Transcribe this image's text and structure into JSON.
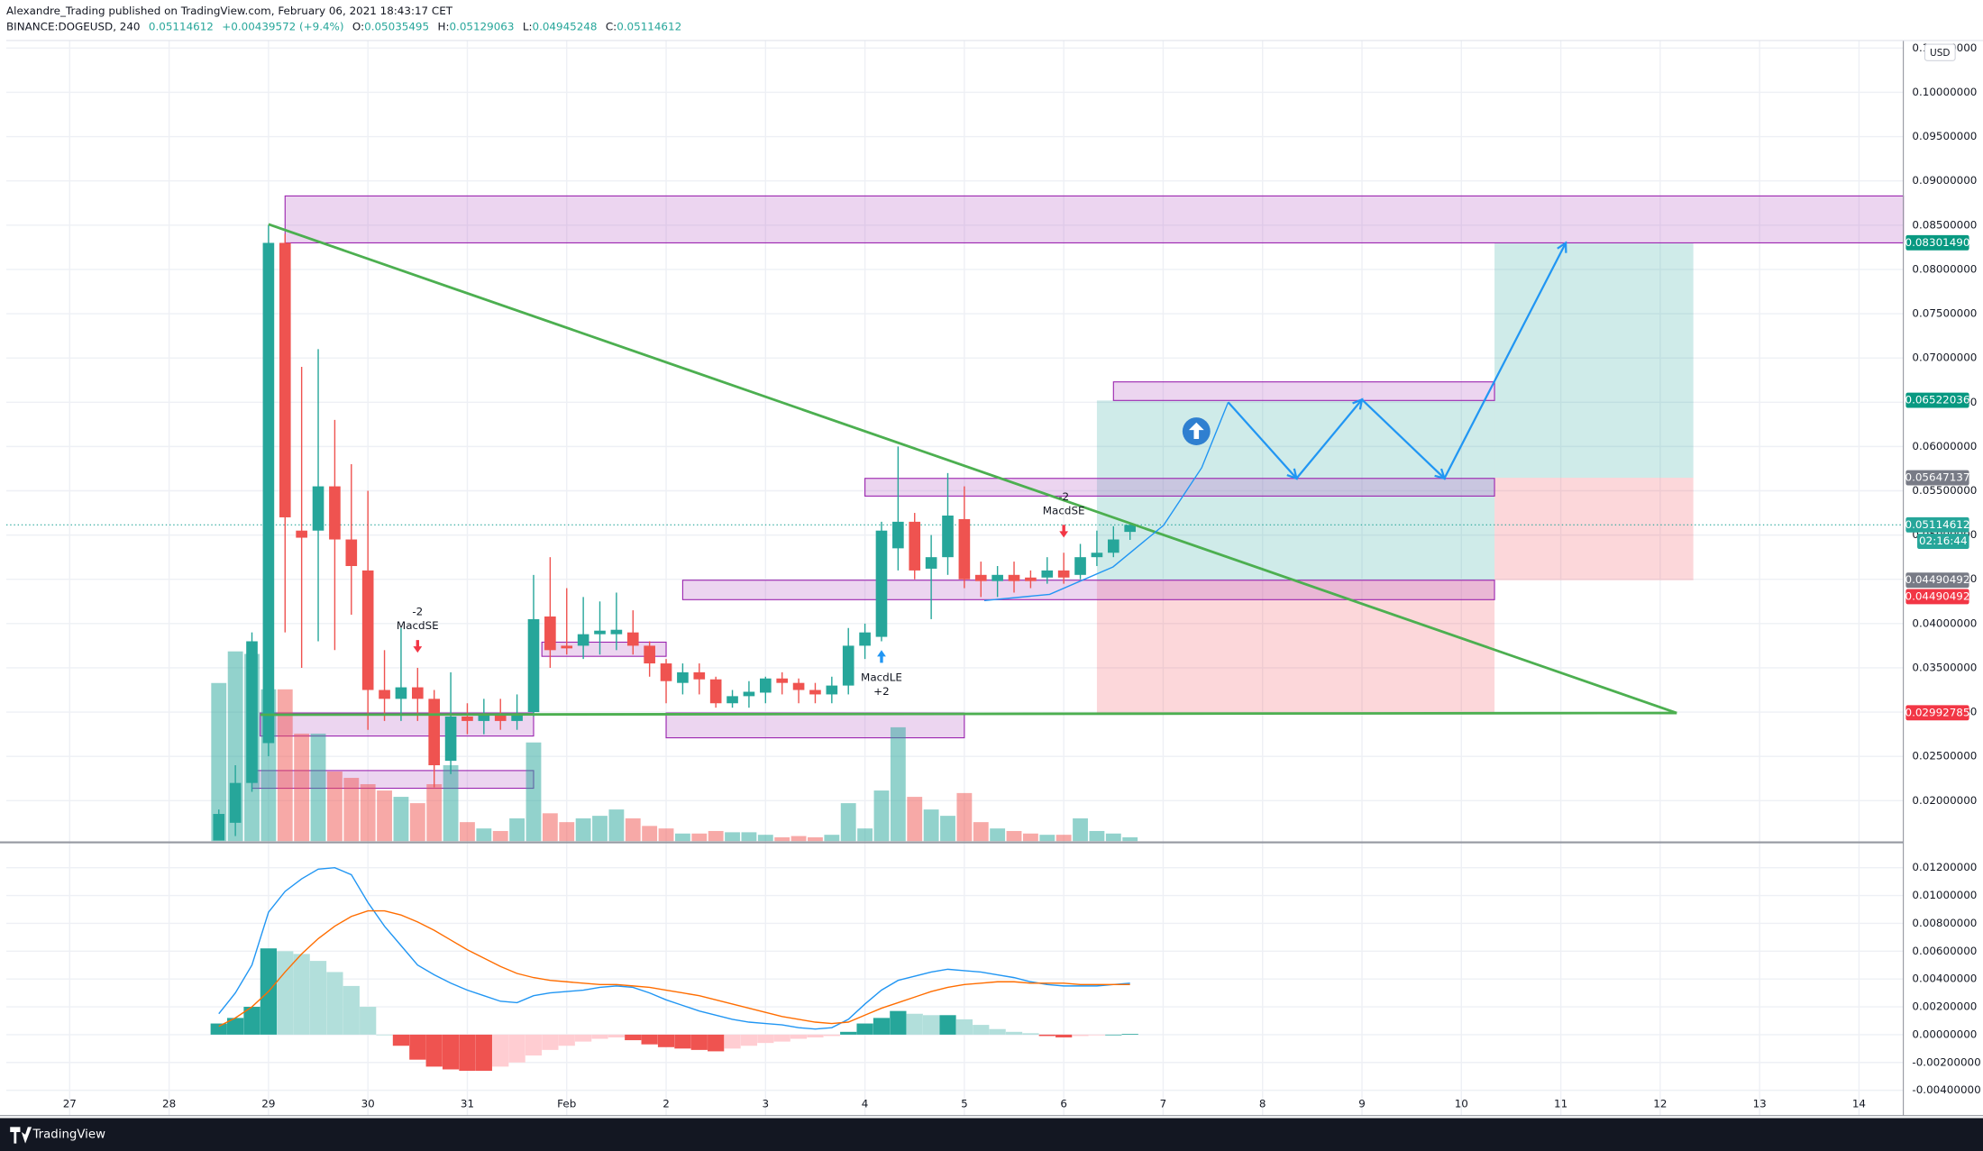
{
  "header": {
    "published": "Alexandre_Trading published on TradingView.com, February 06, 2021 18:43:17 CET",
    "symbol": "BINANCE:DOGEUSD, 240",
    "last": "0.05114612",
    "change": "+0.00439572 (+9.4%)",
    "ohlc": [
      {
        "key": "O:",
        "value": "0.05035495"
      },
      {
        "key": "H:",
        "value": "0.05129063"
      },
      {
        "key": "L:",
        "value": "0.04945248"
      },
      {
        "key": "C:",
        "value": "0.05114612"
      }
    ]
  },
  "footer": {
    "brand": "TradingView"
  },
  "chart_data": {
    "type": "candlestick",
    "currency": "USD",
    "countdown": "02:16:44",
    "up_color": "#26a69a",
    "down_color": "#ef5350",
    "grid": true,
    "x": [
      36,
      40,
      44,
      48,
      52,
      56,
      60,
      64,
      68,
      72,
      76,
      80,
      84,
      88,
      92,
      96,
      100,
      104,
      108,
      112,
      116,
      120,
      124,
      128,
      132,
      136,
      140,
      144,
      148,
      152,
      156,
      160,
      164,
      168,
      172,
      176,
      180,
      184,
      188,
      192,
      196,
      200,
      204,
      208,
      212,
      216,
      220,
      224,
      228,
      232,
      236,
      240,
      244,
      248,
      252,
      256
    ],
    "open": [
      0.0155,
      0.0175,
      0.022,
      0.0265,
      0.083,
      0.0505,
      0.0505,
      0.0555,
      0.0495,
      0.046,
      0.0325,
      0.0315,
      0.0328,
      0.0315,
      0.0245,
      0.0295,
      0.029,
      0.0297,
      0.029,
      0.03,
      0.0408,
      0.0375,
      0.0375,
      0.0388,
      0.0388,
      0.039,
      0.0375,
      0.0355,
      0.0333,
      0.0345,
      0.0337,
      0.031,
      0.0318,
      0.0322,
      0.0338,
      0.0333,
      0.0325,
      0.032,
      0.033,
      0.0375,
      0.0385,
      0.0485,
      0.0515,
      0.0462,
      0.0475,
      0.0518,
      0.0455,
      0.0448,
      0.0455,
      0.0452,
      0.0452,
      0.046,
      0.0455,
      0.0475,
      0.048,
      0.05035495
    ],
    "high": [
      0.019,
      0.024,
      0.039,
      0.085,
      0.084,
      0.069,
      0.071,
      0.063,
      0.058,
      0.055,
      0.037,
      0.0395,
      0.035,
      0.0325,
      0.0345,
      0.031,
      0.0315,
      0.0315,
      0.032,
      0.0455,
      0.0475,
      0.044,
      0.043,
      0.0425,
      0.0435,
      0.0415,
      0.038,
      0.036,
      0.0355,
      0.0355,
      0.034,
      0.0325,
      0.0335,
      0.034,
      0.0345,
      0.0338,
      0.0333,
      0.034,
      0.0395,
      0.04,
      0.0515,
      0.06,
      0.0525,
      0.05,
      0.057,
      0.0555,
      0.047,
      0.0465,
      0.047,
      0.046,
      0.0475,
      0.048,
      0.049,
      0.0505,
      0.051,
      0.05129063
    ],
    "low": [
      0.0155,
      0.016,
      0.021,
      0.025,
      0.039,
      0.035,
      0.038,
      0.037,
      0.041,
      0.028,
      0.029,
      0.029,
      0.029,
      0.0215,
      0.023,
      0.0275,
      0.0275,
      0.028,
      0.028,
      0.0295,
      0.035,
      0.0365,
      0.036,
      0.0365,
      0.037,
      0.0365,
      0.034,
      0.031,
      0.032,
      0.032,
      0.0305,
      0.0305,
      0.0305,
      0.031,
      0.032,
      0.031,
      0.031,
      0.031,
      0.032,
      0.036,
      0.038,
      0.046,
      0.045,
      0.0405,
      0.0455,
      0.044,
      0.043,
      0.043,
      0.0435,
      0.044,
      0.0445,
      0.0445,
      0.045,
      0.0465,
      0.0475,
      0.04945248
    ],
    "close": [
      0.0185,
      0.022,
      0.038,
      0.083,
      0.052,
      0.0497,
      0.0555,
      0.0495,
      0.0465,
      0.0325,
      0.0315,
      0.0328,
      0.0315,
      0.024,
      0.0295,
      0.029,
      0.0297,
      0.029,
      0.0298,
      0.0405,
      0.037,
      0.0372,
      0.0388,
      0.0392,
      0.0393,
      0.0375,
      0.0355,
      0.0335,
      0.0345,
      0.0337,
      0.031,
      0.0318,
      0.0323,
      0.0338,
      0.0333,
      0.0325,
      0.032,
      0.033,
      0.0375,
      0.039,
      0.0505,
      0.0515,
      0.046,
      0.0475,
      0.0522,
      0.045,
      0.0448,
      0.0455,
      0.0448,
      0.0448,
      0.046,
      0.0452,
      0.0475,
      0.048,
      0.0495,
      0.05114612
    ],
    "volume": [
      125,
      150,
      148,
      120,
      120,
      85,
      85,
      55,
      50,
      45,
      40,
      35,
      30,
      45,
      60,
      15,
      10,
      8,
      18,
      78,
      22,
      15,
      18,
      20,
      25,
      18,
      12,
      10,
      6,
      6,
      8,
      7,
      7,
      5,
      3,
      4,
      3,
      5,
      30,
      10,
      40,
      90,
      35,
      25,
      20,
      38,
      15,
      10,
      8,
      6,
      5,
      5,
      18,
      8,
      6,
      3
    ],
    "xlim": [
      -15.3,
      442.7
    ],
    "xticks": [
      {
        "value": 0,
        "label": "27"
      },
      {
        "value": 24,
        "label": "28"
      },
      {
        "value": 48,
        "label": "29"
      },
      {
        "value": 72,
        "label": "30"
      },
      {
        "value": 96,
        "label": "31"
      },
      {
        "value": 120,
        "label": "Feb"
      },
      {
        "value": 144,
        "label": "2"
      },
      {
        "value": 168,
        "label": "3"
      },
      {
        "value": 192,
        "label": "4"
      },
      {
        "value": 216,
        "label": "5"
      },
      {
        "value": 240,
        "label": "6"
      },
      {
        "value": 264,
        "label": "7"
      },
      {
        "value": 288,
        "label": "8"
      },
      {
        "value": 312,
        "label": "9"
      },
      {
        "value": 336,
        "label": "10"
      },
      {
        "value": 360,
        "label": "11"
      },
      {
        "value": 384,
        "label": "12"
      },
      {
        "value": 408,
        "label": "13"
      },
      {
        "value": 432,
        "label": "14"
      }
    ],
    "ylim": [
      0.01543,
      0.10586
    ],
    "yticks": [
      {
        "value": 0.02,
        "label": "0.02000000"
      },
      {
        "value": 0.025,
        "label": "0.02500000"
      },
      {
        "value": 0.03,
        "label": "0.03000000"
      },
      {
        "value": 0.035,
        "label": "0.03500000"
      },
      {
        "value": 0.04,
        "label": "0.04000000"
      },
      {
        "value": 0.045,
        "label": "0.04500000"
      },
      {
        "value": 0.05,
        "label": "0.05000000"
      },
      {
        "value": 0.055,
        "label": "0.05500000"
      },
      {
        "value": 0.06,
        "label": "0.06000000"
      },
      {
        "value": 0.065,
        "label": "0.06500000"
      },
      {
        "value": 0.07,
        "label": "0.07000000"
      },
      {
        "value": 0.075,
        "label": "0.07500000"
      },
      {
        "value": 0.08,
        "label": "0.08000000"
      },
      {
        "value": 0.085,
        "label": "0.08500000"
      },
      {
        "value": 0.09,
        "label": "0.09000000"
      },
      {
        "value": 0.095,
        "label": "0.09500000"
      },
      {
        "value": 0.1,
        "label": "0.10000000"
      },
      {
        "value": 0.105,
        "label": "0.10500000"
      }
    ],
    "price_labels": [
      {
        "value": 0.0830149,
        "label": "0.08301490",
        "color": "#089981"
      },
      {
        "value": 0.06522036,
        "label": "0.06522036",
        "color": "#089981"
      },
      {
        "value": 0.05647137,
        "label": "0.05647137",
        "color": "#787b86"
      },
      {
        "value": 0.05114612,
        "label": "0.05114612",
        "color": "#26a69a"
      },
      {
        "value": 0.04490492,
        "label": "0.04490492",
        "color": "#787b86"
      },
      {
        "value": 0.04490492,
        "label": "0.04490492",
        "color": "#f23645"
      },
      {
        "value": 0.02992785,
        "label": "0.02992785",
        "color": "#f23645"
      }
    ],
    "zones": [
      {
        "x": [
          52,
          443
        ],
        "y": [
          0.083,
          0.0883
        ]
      },
      {
        "x": [
          252,
          344
        ],
        "y": [
          0.0652,
          0.0673
        ]
      },
      {
        "x": [
          192,
          344
        ],
        "y": [
          0.0544,
          0.0564
        ]
      },
      {
        "x": [
          148,
          344
        ],
        "y": [
          0.0427,
          0.0449
        ]
      },
      {
        "x": [
          114,
          144
        ],
        "y": [
          0.0363,
          0.0379
        ]
      },
      {
        "x": [
          144,
          216
        ],
        "y": [
          0.0271,
          0.0299
        ]
      },
      {
        "x": [
          46,
          112
        ],
        "y": [
          0.0273,
          0.0299
        ]
      },
      {
        "x": [
          44,
          112
        ],
        "y": [
          0.0214,
          0.0234
        ]
      }
    ],
    "positions": [
      {
        "x": [
          248,
          344
        ],
        "entry": 0.0449,
        "target": 0.0652,
        "stop": 0.02993
      },
      {
        "x": [
          344,
          392
        ],
        "entry": 0.05647,
        "target": 0.08301,
        "stop": 0.0449
      }
    ],
    "trend_lines": {
      "color": "#4caf50",
      "lines": [
        [
          [
            48,
            0.0851
          ],
          [
            388,
            0.0299
          ]
        ],
        [
          [
            46,
            0.0297
          ],
          [
            388,
            0.0299
          ]
        ]
      ]
    },
    "projection": {
      "color": "#2196f3",
      "path": [
        [
          279.7,
          0.065
        ],
        [
          296.2,
          0.0564
        ],
        [
          312,
          0.0653
        ],
        [
          331.9,
          0.0564
        ],
        [
          361.2,
          0.083
        ]
      ],
      "curve": [
        [
          220.8,
          0.0426
        ],
        [
          236.6,
          0.0433
        ],
        [
          251.9,
          0.0464
        ],
        [
          264.1,
          0.0511
        ],
        [
          273.3,
          0.0576
        ],
        [
          279.7,
          0.065
        ]
      ]
    },
    "signals": [
      {
        "x": 84,
        "lines": [
          "-2",
          "MacdSE"
        ],
        "direction": "short"
      },
      {
        "x": 196,
        "lines": [
          "MacdLE",
          "+2"
        ],
        "direction": "long"
      },
      {
        "x": 240,
        "lines": [
          "-2",
          "MacdSE"
        ],
        "direction": "short"
      }
    ],
    "macd": {
      "macd_color": "#2196f3",
      "signal_color": "#ff6d00",
      "ylim": [
        -0.00582,
        0.01364
      ],
      "yticks": [
        {
          "value": -0.004,
          "label": "-0.00400000"
        },
        {
          "value": -0.002,
          "label": "-0.00200000"
        },
        {
          "value": 0,
          "label": "0.00000000"
        },
        {
          "value": 0.002,
          "label": "0.00200000"
        },
        {
          "value": 0.004,
          "label": "0.00400000"
        },
        {
          "value": 0.006,
          "label": "0.00600000"
        },
        {
          "value": 0.008,
          "label": "0.00800000"
        },
        {
          "value": 0.01,
          "label": "0.01000000"
        },
        {
          "value": 0.012,
          "label": "0.01200000"
        }
      ],
      "histogram": [
        0.0008,
        0.0012,
        0.002,
        0.0062,
        0.006,
        0.0058,
        0.0053,
        0.0045,
        0.0035,
        0.002,
        0,
        -0.0008,
        -0.0018,
        -0.0023,
        -0.0025,
        -0.0026,
        -0.0026,
        -0.0023,
        -0.002,
        -0.0015,
        -0.0011,
        -0.0008,
        -0.0005,
        -0.0003,
        -0.0002,
        -0.0004,
        -0.0007,
        -0.0009,
        -0.001,
        -0.0011,
        -0.0012,
        -0.001,
        -0.0008,
        -0.0006,
        -0.0005,
        -0.0003,
        -0.0002,
        -0.0001,
        0.0002,
        0.0008,
        0.0012,
        0.0017,
        0.0015,
        0.0014,
        0.0014,
        0.0011,
        0.0007,
        0.0004,
        0.0002,
        0.0001,
        -0.0001,
        -0.0002,
        -0.0001,
        -5e-05,
        0,
        5e-05
      ],
      "macd": [
        0.0015,
        0.003,
        0.005,
        0.0088,
        0.0103,
        0.0112,
        0.0119,
        0.012,
        0.0115,
        0.0095,
        0.0078,
        0.0064,
        0.005,
        0.0043,
        0.0037,
        0.0032,
        0.0028,
        0.0024,
        0.0023,
        0.0028,
        0.003,
        0.0031,
        0.0032,
        0.0034,
        0.0035,
        0.0034,
        0.003,
        0.0025,
        0.0021,
        0.0017,
        0.0014,
        0.0011,
        0.0009,
        0.0008,
        0.0007,
        0.0005,
        0.0004,
        0.0005,
        0.0011,
        0.0022,
        0.0032,
        0.0039,
        0.0042,
        0.0045,
        0.0047,
        0.0046,
        0.0045,
        0.0043,
        0.0041,
        0.0038,
        0.0036,
        0.0035,
        0.0035,
        0.0035,
        0.0036,
        0.0037
      ],
      "signal": [
        0.0006,
        0.0012,
        0.002,
        0.0031,
        0.0045,
        0.0058,
        0.0069,
        0.0078,
        0.0085,
        0.0089,
        0.0089,
        0.0086,
        0.0081,
        0.0075,
        0.0068,
        0.0061,
        0.0055,
        0.0049,
        0.0044,
        0.0041,
        0.0039,
        0.0038,
        0.0037,
        0.0036,
        0.0036,
        0.0035,
        0.0034,
        0.0032,
        0.003,
        0.0028,
        0.0025,
        0.0022,
        0.0019,
        0.0016,
        0.0013,
        0.0011,
        0.0009,
        0.0008,
        0.0009,
        0.0014,
        0.0019,
        0.0023,
        0.0027,
        0.0031,
        0.0034,
        0.0036,
        0.0037,
        0.0038,
        0.0038,
        0.0037,
        0.0037,
        0.0037,
        0.0036,
        0.0036,
        0.0036,
        0.0036
      ]
    }
  }
}
